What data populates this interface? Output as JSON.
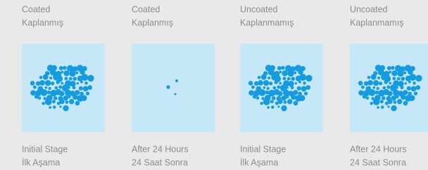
{
  "panels": [
    {
      "header": [
        "Coated",
        "Kaplanmış"
      ],
      "footer": [
        "Initial Stage",
        "İlk Aşama"
      ]
    },
    {
      "header": [
        "Coated",
        "Kaplanmış"
      ],
      "footer": [
        "After 24 Hours",
        "24 Saat Sonra"
      ]
    },
    {
      "header": [
        "Uncoated",
        "Kaplanmamış"
      ],
      "footer": [
        "Initial Stage",
        "İlk Aşama"
      ]
    },
    {
      "header": [
        "Uncoated",
        "Kaplanmamış"
      ],
      "footer": [
        "After 24 Hours",
        "24 Saat Sonra"
      ]
    }
  ]
}
